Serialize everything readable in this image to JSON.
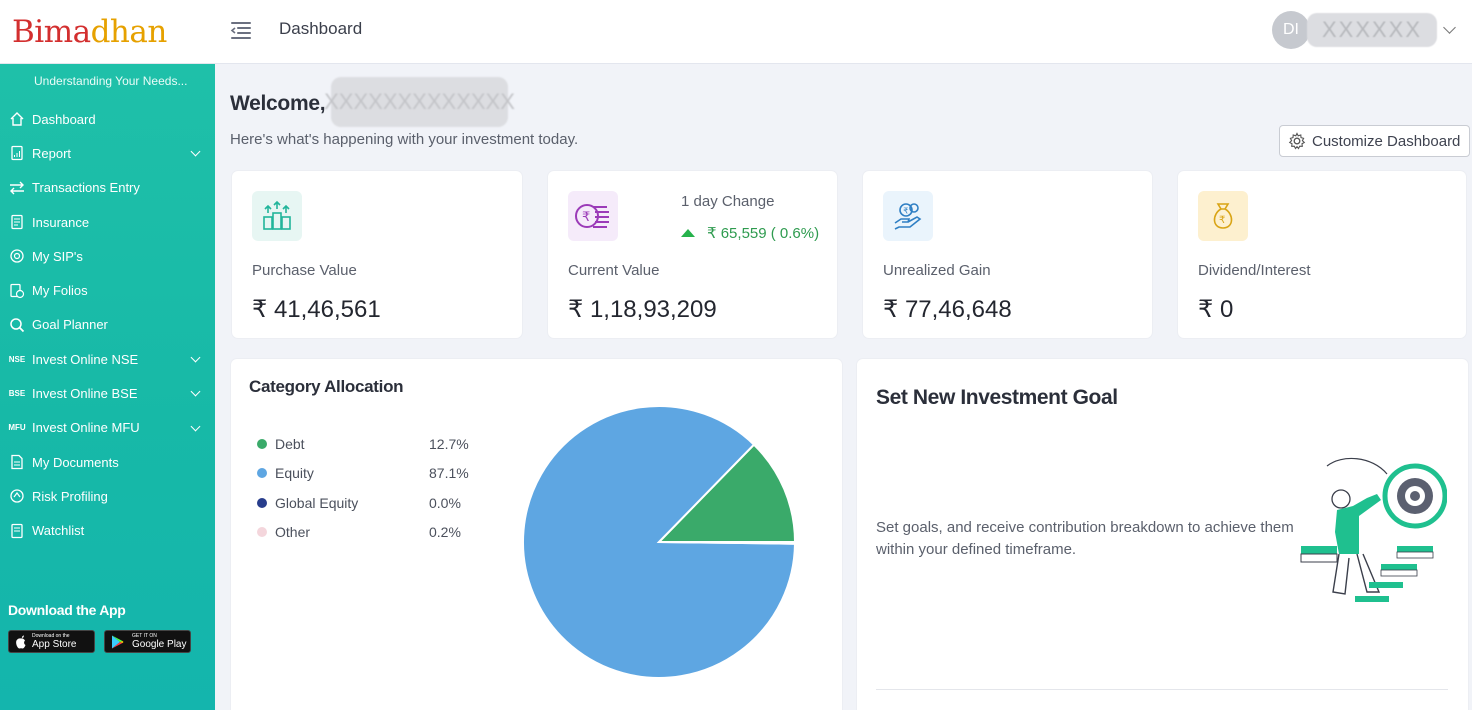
{
  "header": {
    "logo_main": "Bima",
    "logo_accent": "dhan",
    "page_title": "Dashboard",
    "user_initials": "DI",
    "user_name": "XXXXXX"
  },
  "sidebar": {
    "tagline": "Understanding Your Needs...",
    "items": [
      {
        "label": "Dashboard",
        "icon": "home-icon",
        "glyph": "⌂"
      },
      {
        "label": "Report",
        "icon": "report-icon",
        "glyph": "▤"
      },
      {
        "label": "Transactions Entry",
        "icon": "transfer-icon",
        "glyph": "⇄"
      },
      {
        "label": "Insurance",
        "icon": "insurance-icon",
        "glyph": "▥"
      },
      {
        "label": "My SIP's",
        "icon": "sip-icon",
        "glyph": "◎"
      },
      {
        "label": "My Folios",
        "icon": "folio-icon",
        "glyph": "₹"
      },
      {
        "label": "Goal Planner",
        "icon": "goal-search-icon",
        "glyph": "◉"
      },
      {
        "label": "Invest Online NSE",
        "icon": "nse-icon",
        "glyph": "NSE"
      },
      {
        "label": "Invest Online BSE",
        "icon": "bse-icon",
        "glyph": "BSE"
      },
      {
        "label": "Invest Online MFU",
        "icon": "mfu-icon",
        "glyph": "MFU"
      },
      {
        "label": "My Documents",
        "icon": "document-icon",
        "glyph": "▤"
      },
      {
        "label": "Risk Profiling",
        "icon": "risk-icon",
        "glyph": "◈"
      },
      {
        "label": "Watchlist",
        "icon": "watchlist-icon",
        "glyph": "▤"
      }
    ],
    "download_title": "Download the App",
    "app_store_small": "Download on the",
    "app_store_big": "App Store",
    "play_small": "GET IT ON",
    "play_big": "Google Play"
  },
  "welcome": {
    "greeting": "Welcome,",
    "name": "XXXXXXXXXXXXX",
    "subtitle": "Here's what's happening with your investment today.",
    "customize_label": "Customize Dashboard"
  },
  "stats": {
    "purchase": {
      "label": "Purchase Value",
      "value": "₹ 41,46,561"
    },
    "current": {
      "label": "Current Value",
      "value": "₹ 1,18,93,209",
      "change_label": "1 day Change",
      "change_value": "₹ 65,559 ( 0.6%)"
    },
    "unrealized": {
      "label": "Unrealized Gain",
      "value": "₹ 77,46,648"
    },
    "dividend": {
      "label": "Dividend/Interest",
      "value": "₹ 0"
    }
  },
  "colors": {
    "sidebar": "#17b9a7",
    "debt": "#3aaa6a",
    "equity": "#5ea6e2",
    "global_equity": "#283d8c",
    "other": "#f4d6dc"
  },
  "chart_data": {
    "type": "pie",
    "title": "Category Allocation",
    "categories": [
      "Debt",
      "Equity",
      "Global Equity",
      "Other"
    ],
    "values": [
      12.7,
      87.1,
      0.0,
      0.2
    ],
    "labels": [
      "12.7%",
      "87.1%",
      "0.0%",
      "0.2%"
    ],
    "colors": [
      "#3aaa6a",
      "#5ea6e2",
      "#283d8c",
      "#f4d6dc"
    ]
  },
  "goal": {
    "title": "Set New Investment Goal",
    "description": "Set goals, and receive contribution breakdown to achieve them within your defined timeframe."
  }
}
